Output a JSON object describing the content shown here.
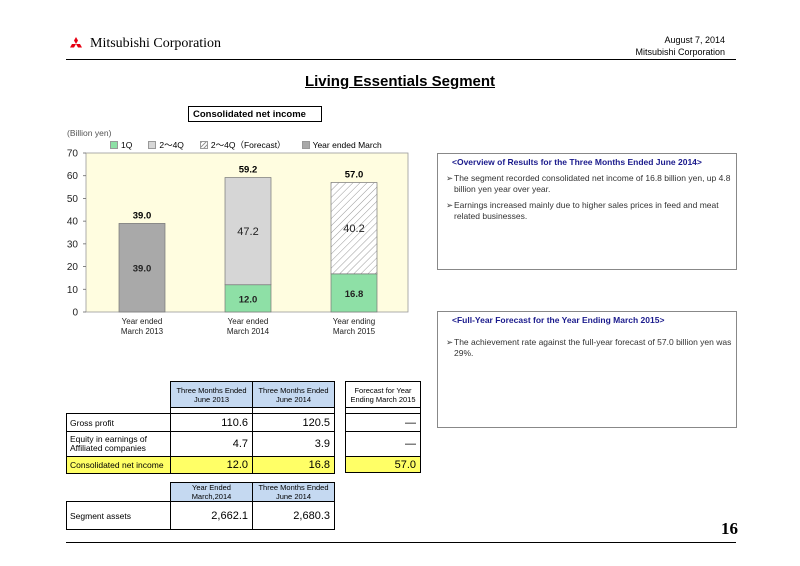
{
  "header": {
    "company": "Mitsubishi Corporation",
    "date": "August 7, 2014",
    "company_right": "Mitsubishi Corporation"
  },
  "page_title": "Living Essentials Segment",
  "chart_label": "Consolidated net income",
  "unit_label": "(Billion yen)",
  "chart_data": {
    "type": "bar",
    "stacked": true,
    "categories": [
      "Year ended March 2013",
      "Year ended March 2014",
      "Year ending March 2015"
    ],
    "category_lines": [
      [
        "Year ended",
        "March 2013"
      ],
      [
        "Year ended",
        "March 2014"
      ],
      [
        "Year ending",
        "March 2015"
      ]
    ],
    "series": [
      {
        "name": "1Q",
        "values": [
          null,
          12.0,
          16.8
        ],
        "labels": [
          "",
          "12.0",
          "16.8"
        ],
        "color": "#8ee0a6"
      },
      {
        "name": "2～4Q",
        "values": [
          null,
          47.2,
          null
        ],
        "labels": [
          "",
          "47.2",
          ""
        ],
        "color": "#d6d6d6"
      },
      {
        "name": "2～4Q（Forecast）",
        "values": [
          null,
          null,
          40.2
        ],
        "labels": [
          "",
          "",
          "40.2"
        ],
        "color": "#ffffff"
      },
      {
        "name": "Year ended March",
        "values": [
          39.0,
          null,
          null
        ],
        "labels": [
          "39.0",
          "",
          ""
        ],
        "color": "#a9a9a9"
      }
    ],
    "totals": [
      39.0,
      59.2,
      57.0
    ],
    "total_labels": [
      "39.0",
      "59.2",
      "57.0"
    ],
    "ylim": [
      0,
      70
    ],
    "yticks": [
      0,
      10,
      20,
      30,
      40,
      50,
      60,
      70
    ],
    "grid": false,
    "legend_position": "top",
    "plot_background": "#fffde0"
  },
  "overview": {
    "title": "<Overview of Results for the Three Months Ended June 2014>",
    "bullets": [
      "The segment recorded consolidated net income of 16.8 billion yen, up 4.8 billion yen year over year.",
      "Earnings increased mainly due to higher sales prices in feed and meat related businesses."
    ]
  },
  "forecast": {
    "title": "<Full-Year Forecast for the Year Ending March 2015>",
    "bullets": [
      "The achievement rate against the full-year forecast of 57.0 billion yen was 29%."
    ]
  },
  "results_table": {
    "headers": [
      "Three Months Ended June 2013",
      "Three Months Ended June 2014"
    ],
    "forecast_header": "Forecast for Year Ending March 2015",
    "rows": [
      {
        "label": "Gross profit",
        "v1": "110.6",
        "v2": "120.5",
        "f": "―"
      },
      {
        "label": "Equity in earnings of Affiliated companies",
        "v1": "4.7",
        "v2": "3.9",
        "f": "―"
      },
      {
        "label": "Consolidated net income",
        "v1": "12.0",
        "v2": "16.8",
        "f": "57.0"
      }
    ]
  },
  "assets_table": {
    "headers": [
      "Year Ended March,2014",
      "Three Months Ended June 2014"
    ],
    "row": {
      "label": "Segment assets",
      "v1": "2,662.1",
      "v2": "2,680.3"
    }
  },
  "page_number": "16"
}
